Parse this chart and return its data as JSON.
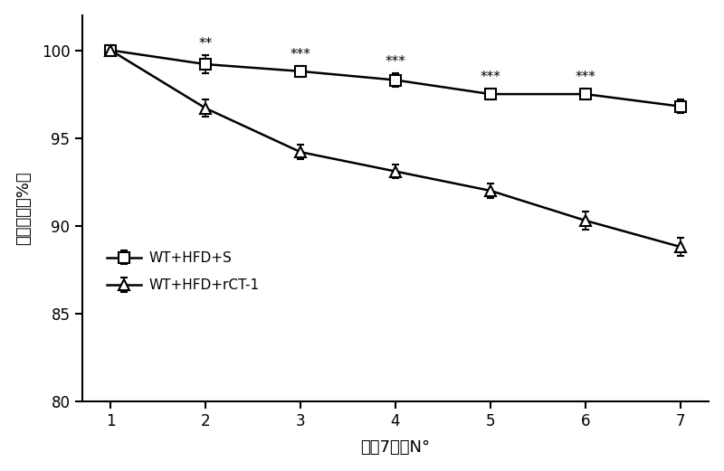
{
  "x": [
    1,
    2,
    3,
    4,
    5,
    6,
    7
  ],
  "series1_y": [
    100.0,
    99.2,
    98.8,
    98.3,
    97.5,
    97.5,
    96.8
  ],
  "series1_yerr": [
    0.3,
    0.5,
    0.3,
    0.4,
    0.3,
    0.3,
    0.4
  ],
  "series1_label": "WT+HFD+S",
  "series1_marker": "s",
  "series2_y": [
    100.0,
    96.7,
    94.2,
    93.1,
    92.0,
    90.3,
    88.8
  ],
  "series2_yerr": [
    0.3,
    0.5,
    0.4,
    0.4,
    0.4,
    0.5,
    0.5
  ],
  "series2_label": "WT+HFD+rCT-1",
  "series2_marker": "^",
  "sig_x": [
    2,
    3,
    4,
    5,
    6
  ],
  "sig_labels": [
    "**",
    "***",
    "***",
    "***",
    "***"
  ],
  "xlabel": "治留7天数N°",
  "ylabel": "体重损伤（%）",
  "ylim": [
    80,
    102
  ],
  "yticks": [
    80,
    85,
    90,
    95,
    100
  ],
  "xticks": [
    1,
    2,
    3,
    4,
    5,
    6,
    7
  ],
  "line_color": "#000000",
  "marker_size": 8,
  "line_width": 1.8
}
